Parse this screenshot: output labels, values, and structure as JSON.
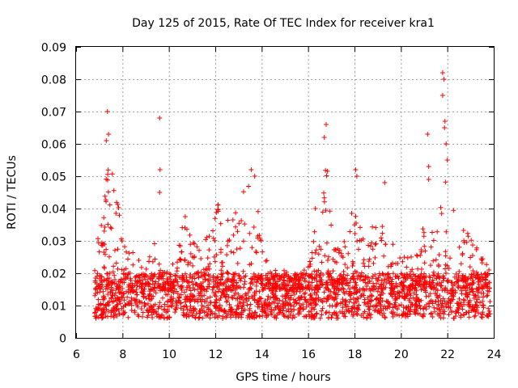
{
  "chart_data": {
    "type": "scatter",
    "title": "Day 125 of 2015, Rate Of TEC Index for receiver kra1",
    "xlabel": "GPS time / hours",
    "ylabel": "ROTI / TECUs",
    "xlim": [
      6,
      24
    ],
    "ylim": [
      0,
      0.09
    ],
    "x_ticks": [
      6,
      8,
      10,
      12,
      14,
      16,
      18,
      20,
      22,
      24
    ],
    "y_ticks": [
      0,
      0.01,
      0.02,
      0.03,
      0.04,
      0.05,
      0.06,
      0.07,
      0.08,
      0.09
    ],
    "x_tick_labels": [
      "6",
      "8",
      "10",
      "12",
      "14",
      "16",
      "18",
      "20",
      "22",
      "24"
    ],
    "y_tick_labels": [
      "0",
      "0.01",
      "0.02",
      "0.03",
      "0.04",
      "0.05",
      "0.06",
      "0.07",
      "0.08",
      "0.09"
    ],
    "grid": true,
    "marker": "plus",
    "color": "#ff0000",
    "series": [
      {
        "name": "ROTI",
        "data_range": [
          6.8,
          23.9
        ],
        "envelope": [
          [
            6.8,
            0.022
          ],
          [
            7.0,
            0.035
          ],
          [
            7.2,
            0.045
          ],
          [
            7.4,
            0.06
          ],
          [
            7.6,
            0.05
          ],
          [
            7.8,
            0.043
          ],
          [
            8.0,
            0.03
          ],
          [
            8.3,
            0.028
          ],
          [
            8.6,
            0.025
          ],
          [
            9.0,
            0.022
          ],
          [
            9.4,
            0.03
          ],
          [
            9.7,
            0.022
          ],
          [
            10.0,
            0.02
          ],
          [
            10.4,
            0.028
          ],
          [
            10.7,
            0.04
          ],
          [
            11.0,
            0.03
          ],
          [
            11.4,
            0.028
          ],
          [
            11.8,
            0.035
          ],
          [
            12.2,
            0.043
          ],
          [
            12.6,
            0.036
          ],
          [
            13.0,
            0.042
          ],
          [
            13.4,
            0.048
          ],
          [
            13.7,
            0.05
          ],
          [
            14.0,
            0.03
          ],
          [
            14.4,
            0.022
          ],
          [
            14.8,
            0.02
          ],
          [
            15.2,
            0.022
          ],
          [
            15.6,
            0.02
          ],
          [
            16.0,
            0.028
          ],
          [
            16.3,
            0.042
          ],
          [
            16.6,
            0.05
          ],
          [
            16.8,
            0.055
          ],
          [
            17.0,
            0.038
          ],
          [
            17.3,
            0.035
          ],
          [
            17.6,
            0.03
          ],
          [
            18.0,
            0.045
          ],
          [
            18.3,
            0.033
          ],
          [
            18.6,
            0.03
          ],
          [
            18.9,
            0.042
          ],
          [
            19.2,
            0.035
          ],
          [
            19.6,
            0.032
          ],
          [
            20.0,
            0.028
          ],
          [
            20.4,
            0.025
          ],
          [
            20.8,
            0.03
          ],
          [
            21.1,
            0.038
          ],
          [
            21.4,
            0.032
          ],
          [
            21.7,
            0.04
          ],
          [
            21.9,
            0.05
          ],
          [
            22.2,
            0.042
          ],
          [
            22.5,
            0.035
          ],
          [
            22.9,
            0.033
          ],
          [
            23.3,
            0.028
          ],
          [
            23.6,
            0.024
          ],
          [
            23.9,
            0.022
          ]
        ],
        "outliers": [
          [
            7.35,
            0.07
          ],
          [
            7.4,
            0.063
          ],
          [
            7.3,
            0.061
          ],
          [
            9.6,
            0.068
          ],
          [
            9.62,
            0.052
          ],
          [
            9.6,
            0.045
          ],
          [
            16.78,
            0.066
          ],
          [
            16.7,
            0.062
          ],
          [
            18.05,
            0.052
          ],
          [
            18.1,
            0.05
          ],
          [
            19.3,
            0.048
          ],
          [
            21.15,
            0.063
          ],
          [
            21.2,
            0.053
          ],
          [
            21.2,
            0.049
          ],
          [
            21.8,
            0.082
          ],
          [
            21.85,
            0.08
          ],
          [
            21.8,
            0.075
          ],
          [
            21.9,
            0.067
          ],
          [
            21.88,
            0.065
          ],
          [
            21.95,
            0.06
          ],
          [
            22.0,
            0.055
          ],
          [
            13.55,
            0.052
          ],
          [
            13.7,
            0.05
          ]
        ]
      }
    ]
  }
}
